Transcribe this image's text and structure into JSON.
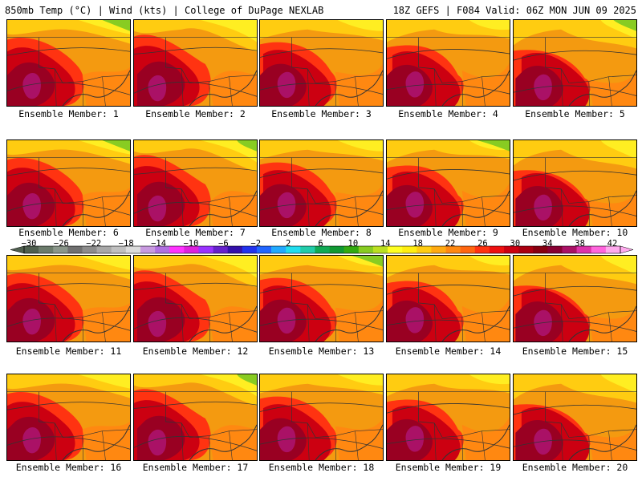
{
  "header": {
    "left": "850mb Temp (°C) | Wind (kts) | College of DuPage NEXLAB",
    "right": "18Z GEFS | F084 Valid: 06Z MON JUN 09 2025"
  },
  "panels": [
    {
      "label": "Ensemble Member: 1"
    },
    {
      "label": "Ensemble Member: 2"
    },
    {
      "label": "Ensemble Member: 3"
    },
    {
      "label": "Ensemble Member: 4"
    },
    {
      "label": "Ensemble Member: 5"
    },
    {
      "label": "Ensemble Member: 6"
    },
    {
      "label": "Ensemble Member: 7"
    },
    {
      "label": "Ensemble Member: 8"
    },
    {
      "label": "Ensemble Member: 9"
    },
    {
      "label": "Ensemble Member: 10"
    },
    {
      "label": "Ensemble Member: 11"
    },
    {
      "label": "Ensemble Member: 12"
    },
    {
      "label": "Ensemble Member: 13"
    },
    {
      "label": "Ensemble Member: 14"
    },
    {
      "label": "Ensemble Member: 15"
    },
    {
      "label": "Ensemble Member: 16"
    },
    {
      "label": "Ensemble Member: 17"
    },
    {
      "label": "Ensemble Member: 18"
    },
    {
      "label": "Ensemble Member: 19"
    },
    {
      "label": "Ensemble Member: 20"
    }
  ],
  "colorbar": {
    "tick_labels": [
      "−30",
      "−26",
      "−22",
      "−18",
      "−14",
      "−10",
      "−6",
      "−2",
      "2",
      "6",
      "10",
      "14",
      "18",
      "22",
      "26",
      "30",
      "34",
      "38",
      "42"
    ],
    "colors": [
      "#4f5f4f",
      "#6b7b6b",
      "#8a968a",
      "#707070",
      "#8c8c8c",
      "#a8a8a8",
      "#c0c0c0",
      "#dcdcdc",
      "#c89ae0",
      "#b070e0",
      "#ff33ff",
      "#dd22dd",
      "#9933ff",
      "#6622cc",
      "#3311aa",
      "#2233ee",
      "#2266ff",
      "#22aaff",
      "#22ddee",
      "#22ccaa",
      "#11aa55",
      "#119933",
      "#33aa11",
      "#88cc22",
      "#bbe022",
      "#ffff22",
      "#ffee11",
      "#ffcc11",
      "#ffaa11",
      "#ff8811",
      "#ff6611",
      "#ff3311",
      "#ee1111",
      "#cc0011",
      "#aa0011",
      "#880011",
      "#880033",
      "#aa1166",
      "#dd33aa",
      "#ff66dd",
      "#ffaaee"
    ]
  }
}
